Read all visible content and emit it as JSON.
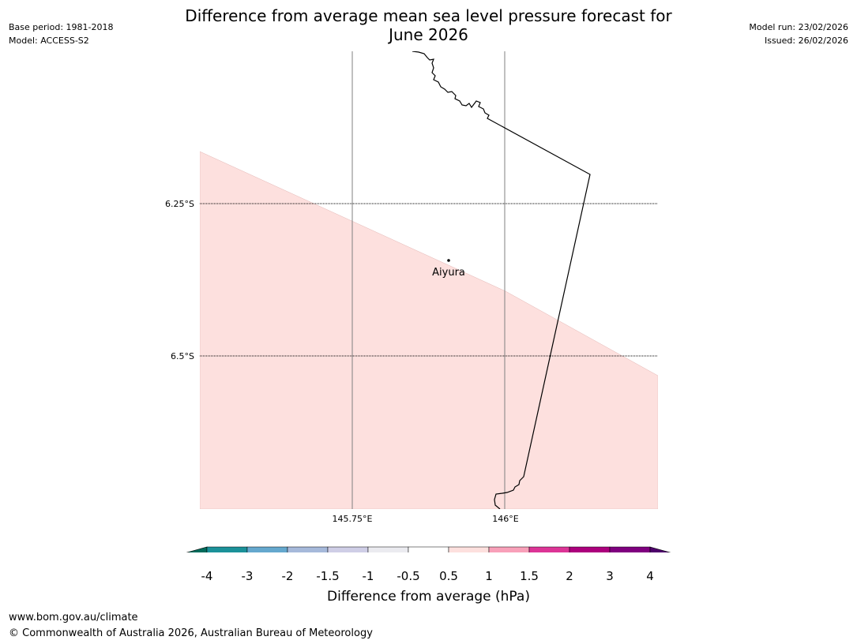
{
  "header": {
    "title_line1": "Difference from average mean sea level pressure forecast for",
    "title_line2": "June 2026",
    "base_period": "Base period: 1981-2018",
    "model": "Model: ACCESS-S2",
    "model_run": "Model run: 23/02/2026",
    "issued": "Issued: 26/02/2026"
  },
  "map": {
    "lat_labels": [
      "6.25°S",
      "6.5°S"
    ],
    "lon_labels": [
      "145.75°E",
      "146°E"
    ],
    "place": {
      "name": "Aiyura"
    },
    "shading_color": "#fde0de"
  },
  "colorbar": {
    "title": "Difference from average (hPa)",
    "labels": [
      "-4",
      "-3",
      "-2",
      "-1.5",
      "-1",
      "-0.5",
      "0.5",
      "1",
      "1.5",
      "2",
      "3",
      "4"
    ],
    "colors": [
      "#1b9199",
      "#65a8ce",
      "#a6b9da",
      "#cfcee6",
      "#ebebf0",
      "#ffffff",
      "#fde0de",
      "#f8a0b9",
      "#dc3496",
      "#ac007d",
      "#7f007f"
    ],
    "under_color": "#006b5b",
    "over_color": "#4d006b"
  },
  "footer": {
    "url": "www.bom.gov.au/climate",
    "copyright": "© Commonwealth of Australia 2026, Australian Bureau of Meteorology"
  }
}
